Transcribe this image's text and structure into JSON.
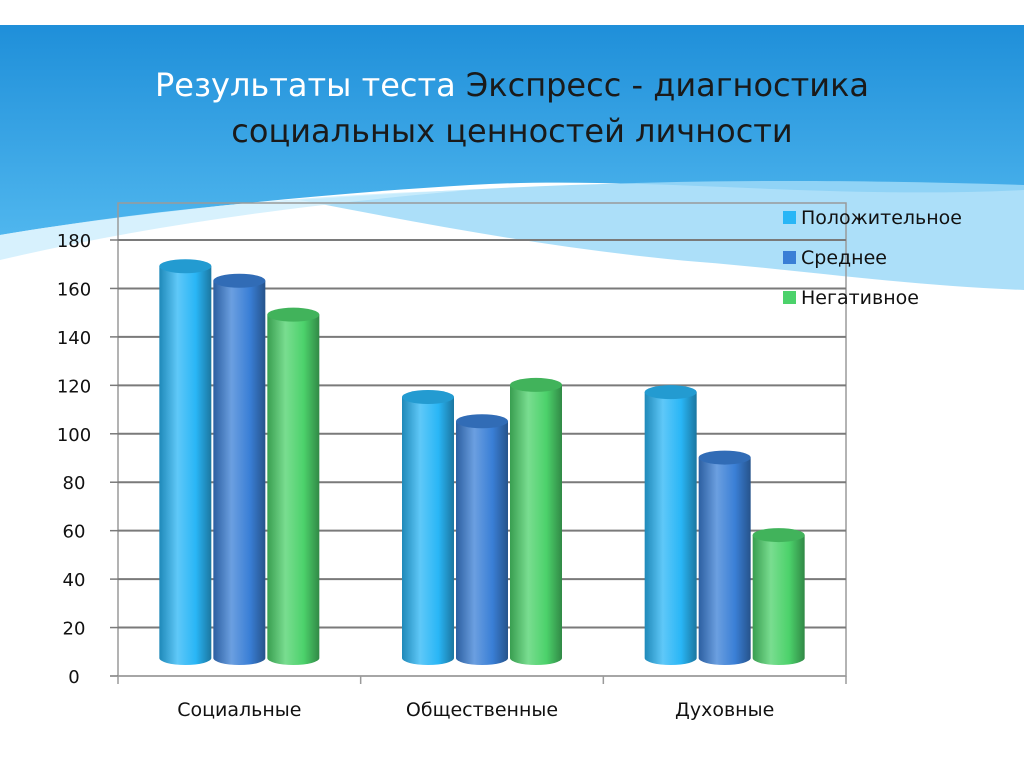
{
  "title": {
    "line1_part1": "Результаты теста",
    "line1_part2": "Экспресс - диагностика",
    "line2": "социальных ценностей личности"
  },
  "colors": {
    "band_top": "#1e9be0",
    "band_light": "#8fd3f7",
    "series": [
      "#29b6f6",
      "#3a7fd6",
      "#4cd26b"
    ]
  },
  "chart_data": {
    "type": "bar",
    "categories": [
      "Социальные",
      "Общественные",
      "Духовные"
    ],
    "series": [
      {
        "name": "Положительное",
        "values": [
          170,
          116,
          118
        ]
      },
      {
        "name": "Среднее",
        "values": [
          164,
          106,
          91
        ]
      },
      {
        "name": "Негативное",
        "values": [
          150,
          121,
          59
        ]
      }
    ],
    "ylim": [
      0,
      180
    ],
    "yticks": [
      "0",
      "20",
      "40",
      "60",
      "80",
      "100",
      "120",
      "140",
      "160",
      "180"
    ],
    "grid": true,
    "legend": "top-right",
    "style": "3d-cylinder"
  }
}
